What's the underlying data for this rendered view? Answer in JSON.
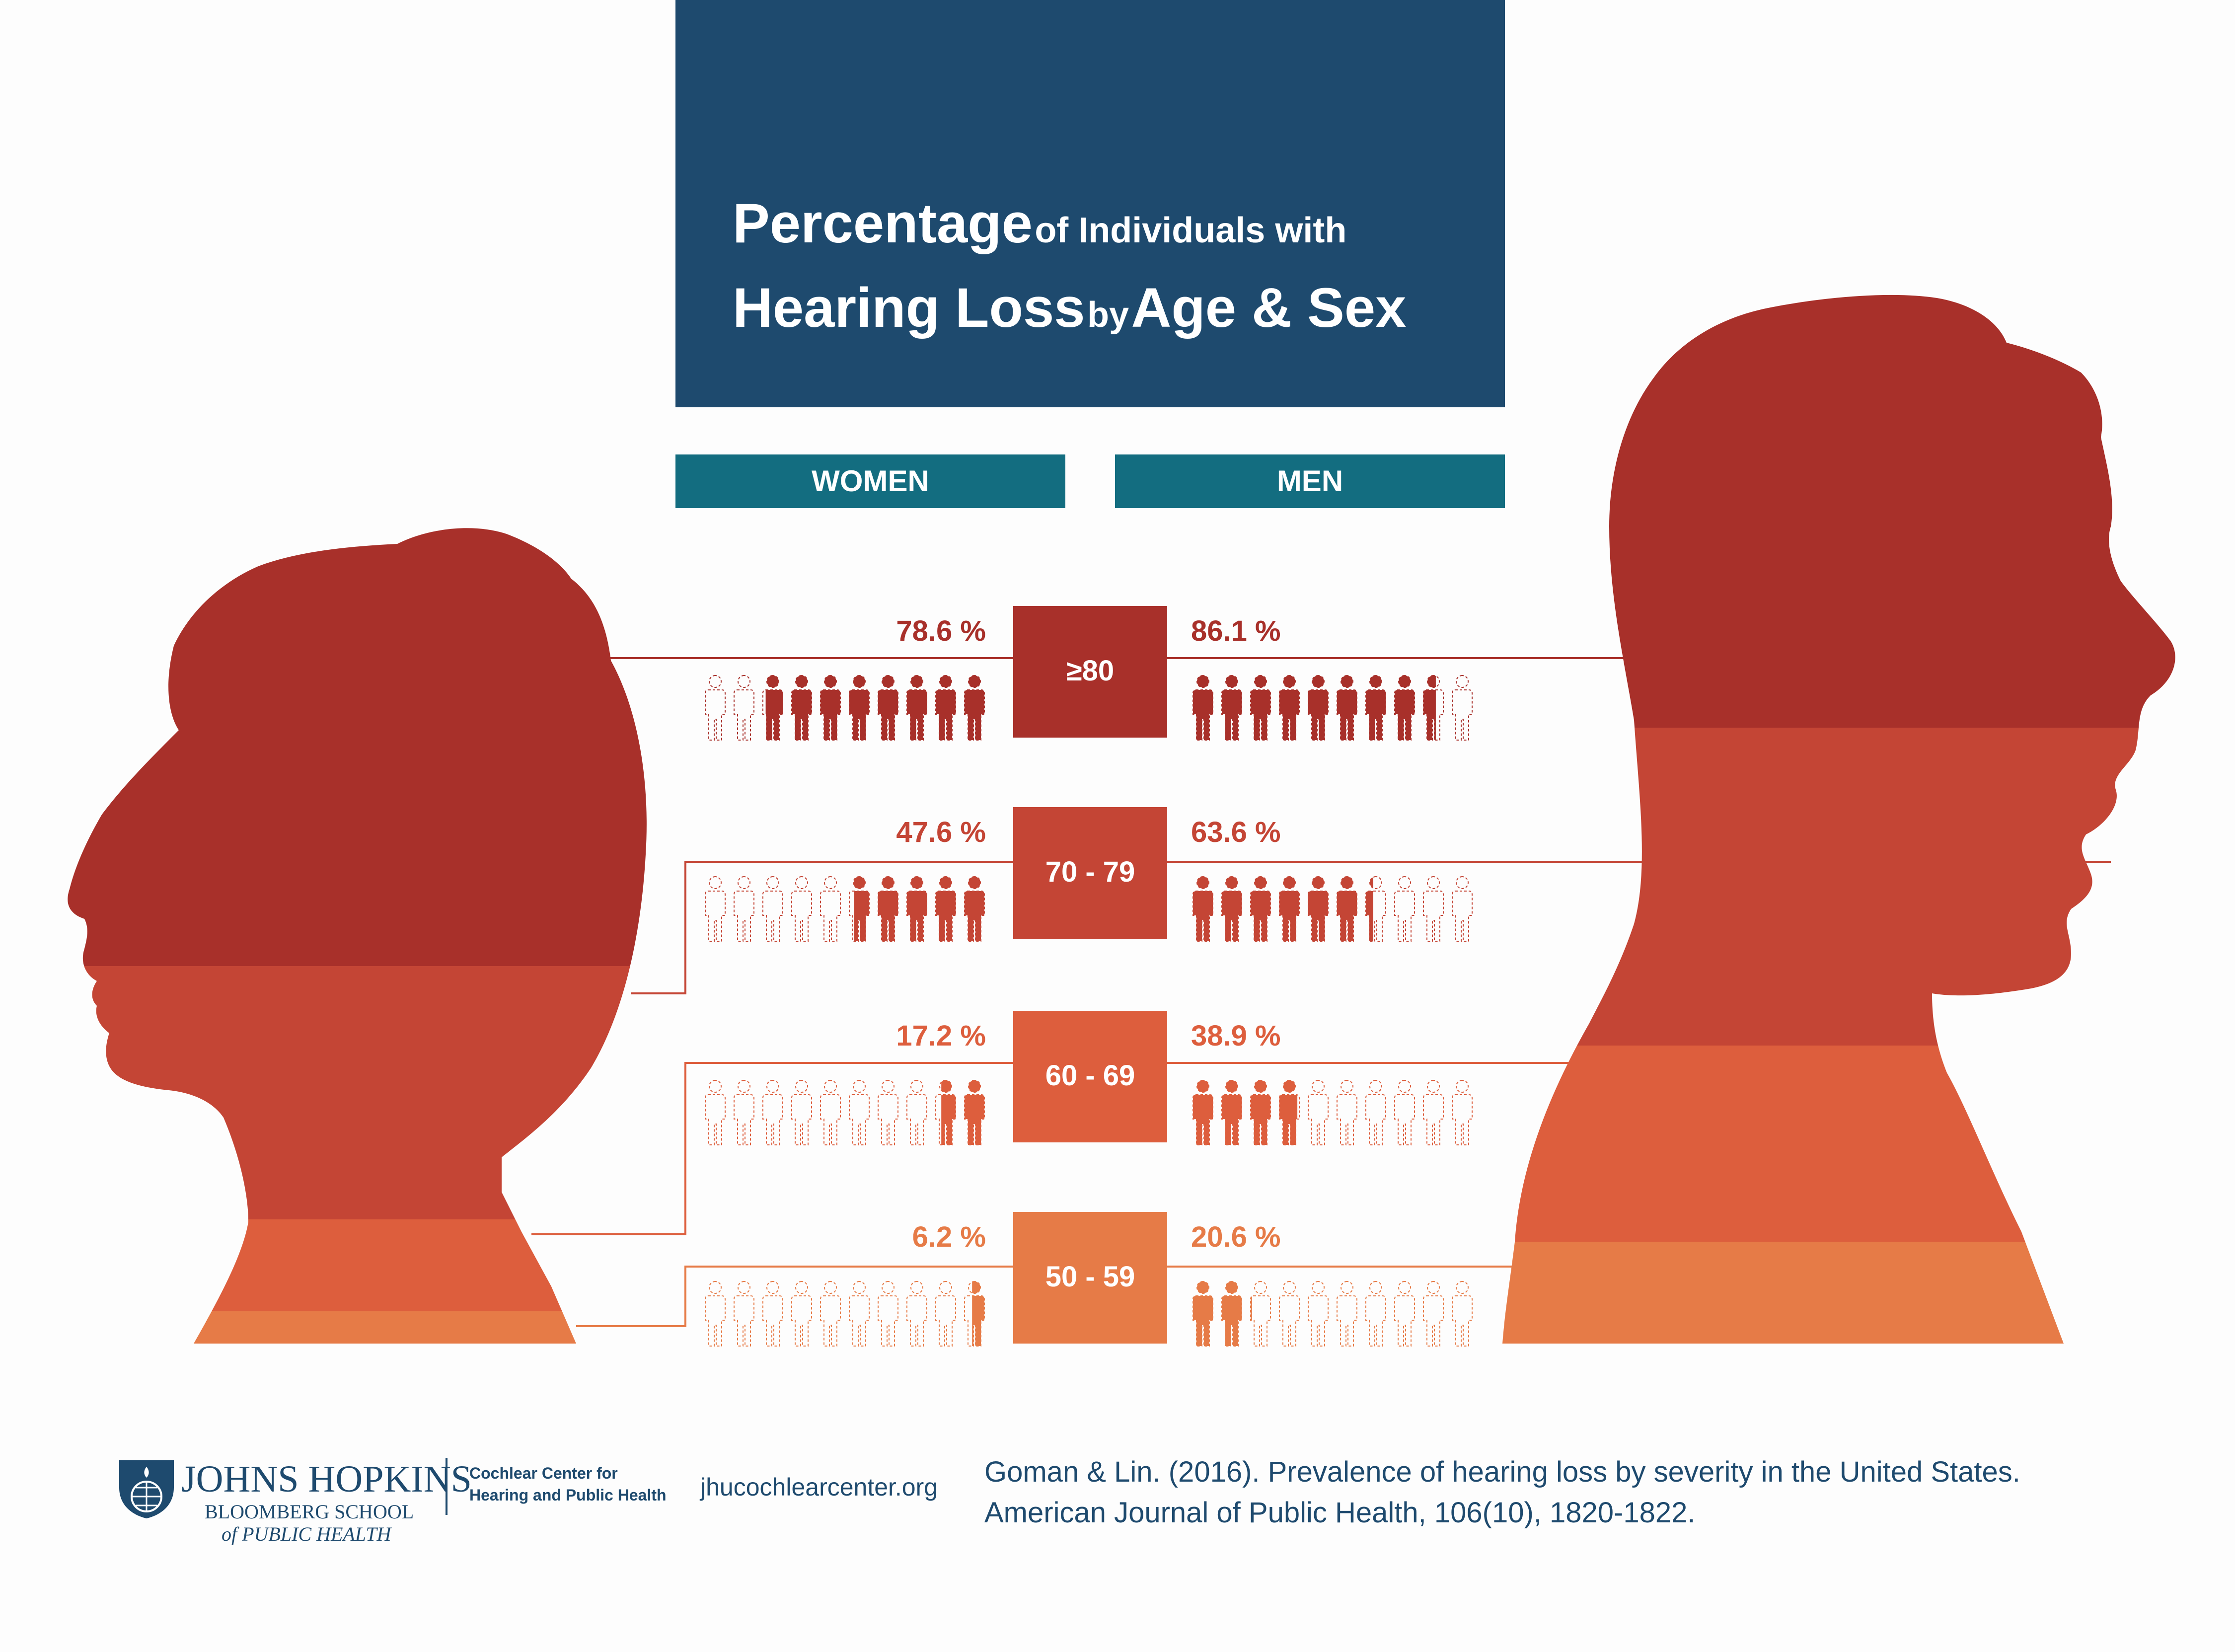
{
  "title": {
    "word1": "Percentage",
    "word2": "of Individuals with",
    "word3": "Hearing Loss",
    "word4": "by",
    "word5": "Age & Sex"
  },
  "headers": {
    "women": "WOMEN",
    "men": "MEN"
  },
  "colors": {
    "navy": "#1e4a6e",
    "teal": "#136d80",
    "age_80": "#a8302a",
    "age_70": "#c44535",
    "age_60": "#dd5e3d",
    "age_50": "#e67b47"
  },
  "chart_data": {
    "type": "pictograph",
    "icons_per_row": 10,
    "rows": [
      {
        "age": "≥80",
        "women_label": "78.6 %",
        "women": 78.6,
        "men_label": "86.1 %",
        "men": 86.1,
        "color": "#a8302a"
      },
      {
        "age": "70 - 79",
        "women_label": "47.6 %",
        "women": 47.6,
        "men_label": "63.6 %",
        "men": 63.6,
        "color": "#c44535"
      },
      {
        "age": "60 - 69",
        "women_label": "17.2 %",
        "women": 17.2,
        "men_label": "38.9 %",
        "men": 38.9,
        "color": "#dd5e3d"
      },
      {
        "age": "50 - 59",
        "women_label": "6.2 %",
        "women": 6.2,
        "men_label": "20.6 %",
        "men": 20.6,
        "color": "#e67b47"
      }
    ]
  },
  "footer": {
    "logo_line1": "JOHNS HOPKINS",
    "logo_line2": "BLOOMBERG SCHOOL",
    "logo_line3": "of PUBLIC HEALTH",
    "center_line1": "Cochlear Center for",
    "center_line2": "Hearing and Public Health",
    "website": "jhucochlearcenter.org",
    "citation_line1": "Goman & Lin. (2016). Prevalence of hearing loss by severity in the United States.",
    "citation_line2": "American Journal of Public Health, 106(10), 1820-1822."
  }
}
